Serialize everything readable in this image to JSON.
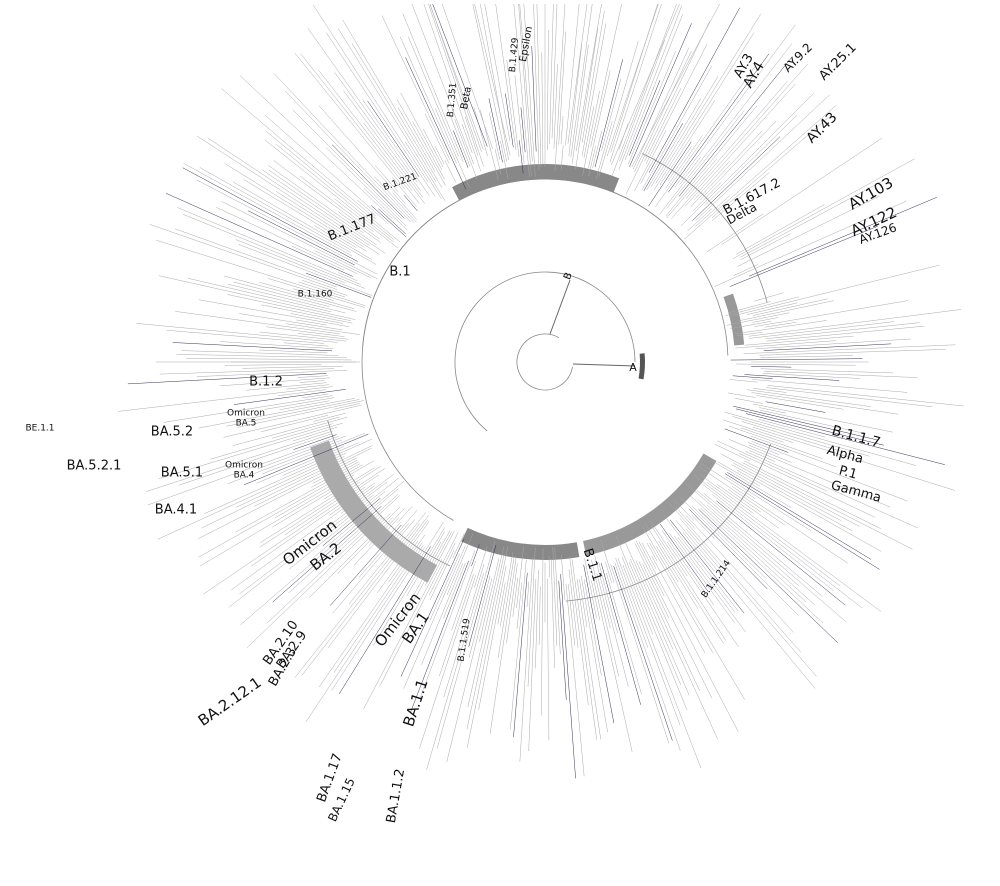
{
  "tree": {
    "nodes": [
      {
        "label": "B.1.617.2"
      },
      {
        "label": "Delta"
      },
      {
        "label": "B.1"
      },
      {
        "label": "B.1.177"
      },
      {
        "label": "B.1.160"
      },
      {
        "label": "B.1.2"
      },
      {
        "label": "A"
      },
      {
        "label": "B"
      },
      {
        "label": "B.1.1.7"
      },
      {
        "label": "Alpha"
      },
      {
        "label": "P.1"
      },
      {
        "label": "Gamma"
      },
      {
        "label": "B.1.1"
      },
      {
        "label": "Omicron"
      },
      {
        "label": "BA.2"
      },
      {
        "label": "Omicron"
      },
      {
        "label": "BA.1"
      },
      {
        "label": "BA.1.1"
      },
      {
        "label": "BA.5.2"
      },
      {
        "label": "BA.5.2.1"
      },
      {
        "label": "BA.5.1"
      },
      {
        "label": "BA.4.1"
      },
      {
        "label": "Omicron"
      },
      {
        "label": "BA.5"
      },
      {
        "label": "Omicron"
      },
      {
        "label": "BA.4"
      },
      {
        "label": "BE.1.1"
      },
      {
        "label": "BA.2.12.1"
      },
      {
        "label": "BA.2.3"
      },
      {
        "label": "BA.2.9"
      },
      {
        "label": "BA.2.10"
      },
      {
        "label": "BA.1.17"
      },
      {
        "label": "BA.1.15"
      },
      {
        "label": "BA.1.1.2"
      },
      {
        "label": "AY.3"
      },
      {
        "label": "AY.4"
      },
      {
        "label": "AY.25.1"
      },
      {
        "label": "AY.9.2"
      },
      {
        "label": "AY.43"
      },
      {
        "label": "AY.103"
      },
      {
        "label": "AY.122"
      },
      {
        "label": "AY.126"
      },
      {
        "label": "Beta"
      },
      {
        "label": "Epsilon"
      },
      {
        "label": "B.1.1.214"
      },
      {
        "label": "B.1.351"
      },
      {
        "label": "B.1.429"
      },
      {
        "label": "B.1.221"
      },
      {
        "label": "B.1.1.519"
      }
    ]
  }
}
